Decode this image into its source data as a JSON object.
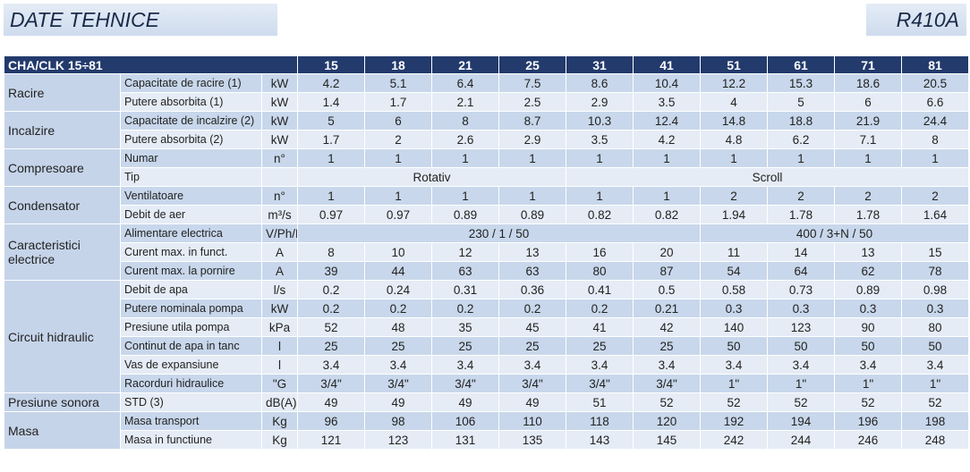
{
  "header": {
    "title": "DATE TEHNICE",
    "refrigerant": "R410A"
  },
  "table": {
    "label": "CHA/CLK 15÷81",
    "models": [
      15,
      18,
      21,
      25,
      31,
      41,
      51,
      61,
      71,
      81
    ],
    "groups": [
      {
        "name": "Racire",
        "rows": [
          {
            "param": "Capacitate de racire (1)",
            "unit": "kW",
            "values": [
              4.2,
              5.1,
              6.4,
              7.5,
              8.6,
              10.4,
              12.2,
              15.3,
              18.6,
              20.5
            ]
          },
          {
            "param": "Putere absorbita (1)",
            "unit": "kW",
            "values": [
              1.4,
              1.7,
              2.1,
              2.5,
              2.9,
              3.5,
              4,
              5,
              6,
              6.6
            ]
          }
        ]
      },
      {
        "name": "Incalzire",
        "rows": [
          {
            "param": "Capacitate de incalzire (2)",
            "unit": "kW",
            "values": [
              5,
              6,
              8,
              8.7,
              10.3,
              12.4,
              14.8,
              18.8,
              21.9,
              24.4
            ]
          },
          {
            "param": "Putere absorbita (2)",
            "unit": "kW",
            "values": [
              1.7,
              2,
              2.6,
              2.9,
              3.5,
              4.2,
              4.8,
              6.2,
              7.1,
              8
            ]
          }
        ]
      },
      {
        "name": "Compresoare",
        "rows": [
          {
            "param": "Numar",
            "unit": "n°",
            "values": [
              1,
              1,
              1,
              1,
              1,
              1,
              1,
              1,
              1,
              1
            ]
          },
          {
            "param": "Tip",
            "values": [
              "Rotativ",
              null,
              null,
              null,
              "Scroll",
              null,
              null,
              null,
              null,
              null
            ]
          }
        ]
      },
      {
        "name": "Condensator",
        "rows": [
          {
            "param": "Ventilatoare",
            "unit": "n°",
            "values": [
              1,
              1,
              1,
              1,
              1,
              1,
              2,
              2,
              2,
              2
            ]
          },
          {
            "param": "Debit de aer",
            "unit": "m³/s",
            "values": [
              0.97,
              0.97,
              0.89,
              0.89,
              0.82,
              0.82,
              1.94,
              1.78,
              1.78,
              1.64
            ]
          }
        ]
      },
      {
        "name": "Caracteristici electrice",
        "rows": [
          {
            "param": "Alimentare electrica",
            "unit": "V/Ph/Hz",
            "values": [
              "230 / 1 / 50",
              null,
              null,
              null,
              null,
              null,
              "400 / 3+N / 50",
              null,
              null,
              null
            ]
          },
          {
            "param": "Curent max. in funct.",
            "unit": "A",
            "values": [
              8,
              10,
              12,
              13,
              16,
              20,
              11,
              14,
              13,
              15
            ]
          },
          {
            "param": "Curent max. la pornire",
            "unit": "A",
            "values": [
              39,
              44,
              63,
              63,
              80,
              87,
              54,
              64,
              62,
              78
            ]
          }
        ]
      },
      {
        "name": "Circuit hidraulic",
        "rows": [
          {
            "param": "Debit de apa",
            "unit": "l/s",
            "values": [
              0.2,
              0.24,
              0.31,
              0.36,
              0.41,
              0.5,
              0.58,
              0.73,
              0.89,
              0.98
            ]
          },
          {
            "param": "Putere nominala pompa",
            "unit": "kW",
            "values": [
              0.2,
              0.2,
              0.2,
              0.2,
              0.2,
              0.21,
              0.3,
              0.3,
              0.3,
              0.3
            ]
          },
          {
            "param": "Presiune utila pompa",
            "unit": "kPa",
            "values": [
              52,
              48,
              35,
              45,
              41,
              42,
              140,
              123,
              90,
              80
            ]
          },
          {
            "param": "Continut de apa in tanc",
            "unit": "l",
            "values": [
              25,
              25,
              25,
              25,
              25,
              25,
              50,
              50,
              50,
              50
            ]
          },
          {
            "param": "Vas de expansiune",
            "unit": "l",
            "values": [
              3.4,
              3.4,
              3.4,
              3.4,
              3.4,
              3.4,
              3.4,
              3.4,
              3.4,
              3.4
            ]
          },
          {
            "param": "Racorduri hidraulice",
            "unit": "\"G",
            "values": [
              "3/4\"",
              "3/4\"",
              "3/4\"",
              "3/4\"",
              "3/4\"",
              "3/4\"",
              "1\"",
              "1\"",
              "1\"",
              "1\""
            ]
          }
        ]
      },
      {
        "name": "Presiune sonora",
        "rows": [
          {
            "param": "STD (3)",
            "unit": "dB(A)",
            "values": [
              49,
              49,
              49,
              49,
              51,
              52,
              52,
              52,
              52,
              52
            ]
          }
        ]
      },
      {
        "name": "Masa",
        "rows": [
          {
            "param": "Masa transport",
            "unit": "Kg",
            "values": [
              96,
              98,
              106,
              110,
              118,
              120,
              192,
              194,
              196,
              198
            ]
          },
          {
            "param": "Masa in functiune",
            "unit": "Kg",
            "values": [
              121,
              123,
              131,
              135,
              143,
              145,
              242,
              244,
              246,
              248
            ]
          }
        ]
      }
    ]
  }
}
